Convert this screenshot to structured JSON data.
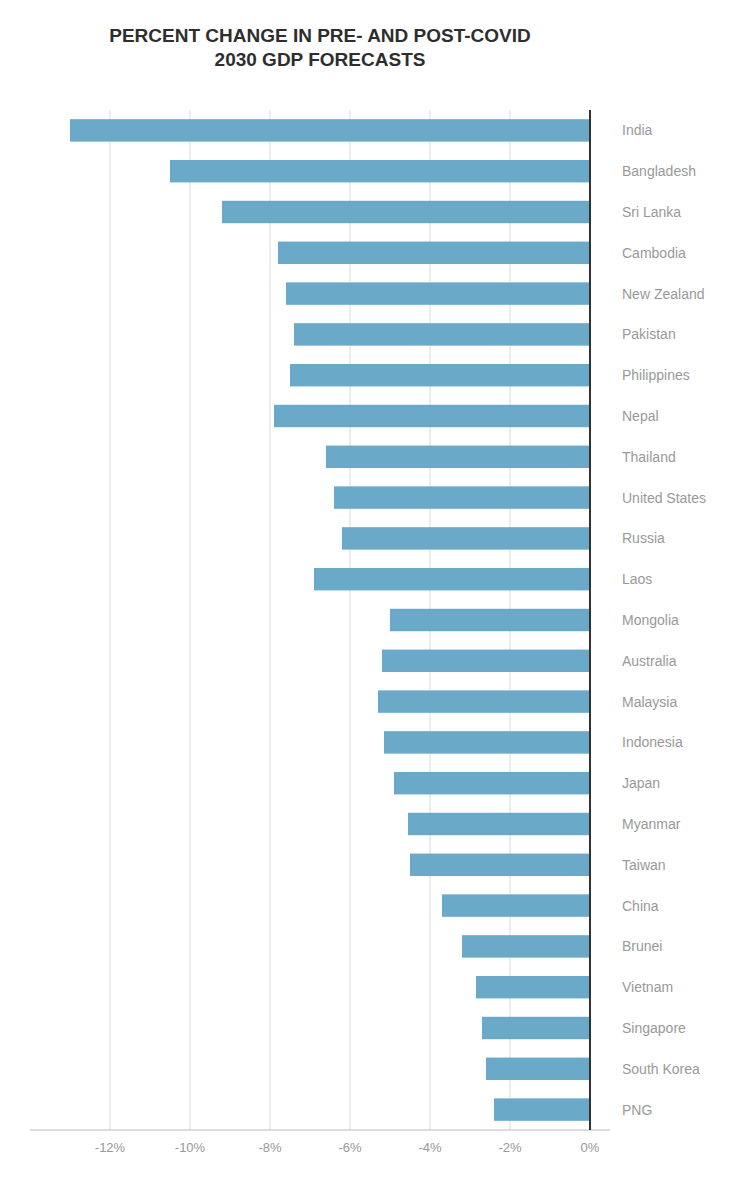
{
  "chart_data": {
    "type": "bar",
    "orientation": "horizontal",
    "title": "PERCENT CHANGE IN PRE- AND POST-COVID\n2030 GDP FORECASTS",
    "categories": [
      "India",
      "Bangladesh",
      "Sri Lanka",
      "Cambodia",
      "New Zealand",
      "Pakistan",
      "Philippines",
      "Nepal",
      "Thailand",
      "United States",
      "Russia",
      "Laos",
      "Mongolia",
      "Australia",
      "Malaysia",
      "Indonesia",
      "Japan",
      "Myanmar",
      "Taiwan",
      "China",
      "Brunei",
      "Vietnam",
      "Singapore",
      "South Korea",
      "PNG"
    ],
    "values": [
      -13.0,
      -10.5,
      -9.2,
      -7.8,
      -7.6,
      -7.4,
      -7.5,
      -7.9,
      -6.6,
      -6.4,
      -6.2,
      -6.9,
      -5.0,
      -5.2,
      -5.3,
      -5.15,
      -4.9,
      -4.55,
      -4.5,
      -3.7,
      -3.2,
      -2.85,
      -2.7,
      -2.6,
      -2.4
    ],
    "color": "#6aaac8",
    "xlim": [
      -14.0,
      0.5
    ],
    "xticks": [
      {
        "value": -12,
        "label": "-12%"
      },
      {
        "value": -10,
        "label": "-10%"
      },
      {
        "value": -8,
        "label": "-8%"
      },
      {
        "value": -6,
        "label": "-6%"
      },
      {
        "value": -4,
        "label": "-4%"
      },
      {
        "value": -2,
        "label": "-2%"
      },
      {
        "value": 0,
        "label": "0%"
      }
    ],
    "grid": true
  }
}
